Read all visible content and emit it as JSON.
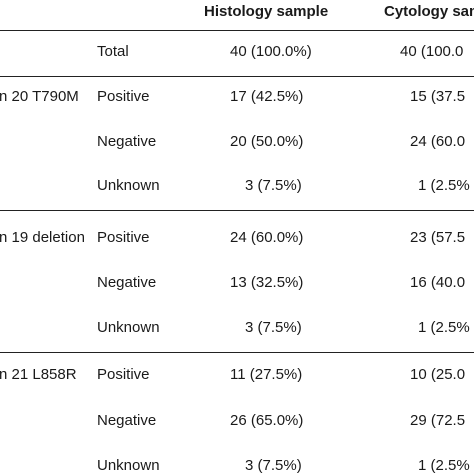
{
  "header": {
    "histology": "Histology sample",
    "cytology": "Cytology sam"
  },
  "total": {
    "label": "Total",
    "histology": "40 (100.0%)",
    "cytology": "40 (100.0"
  },
  "groups": [
    {
      "name": "n 20 T790M",
      "rows": [
        {
          "label": "Positive",
          "histology": "17 (42.5%)",
          "cytology": "15 (37.5"
        },
        {
          "label": "Negative",
          "histology": "20 (50.0%)",
          "cytology": "24 (60.0"
        },
        {
          "label": "Unknown",
          "histology": "3 (7.5%)",
          "cytology": "1 (2.5%"
        }
      ]
    },
    {
      "name": "n 19 deletion",
      "rows": [
        {
          "label": "Positive",
          "histology": "24 (60.0%)",
          "cytology": "23 (57.5"
        },
        {
          "label": "Negative",
          "histology": "13 (32.5%)",
          "cytology": "16 (40.0"
        },
        {
          "label": "Unknown",
          "histology": "3 (7.5%)",
          "cytology": "1 (2.5%"
        }
      ]
    },
    {
      "name": "n 21 L858R",
      "rows": [
        {
          "label": "Positive",
          "histology": "11 (27.5%)",
          "cytology": "10 (25.0"
        },
        {
          "label": "Negative",
          "histology": "26 (65.0%)",
          "cytology": "29 (72.5"
        },
        {
          "label": "Unknown",
          "histology": "3 (7.5%)",
          "cytology": "1 (2.5%"
        }
      ]
    }
  ]
}
